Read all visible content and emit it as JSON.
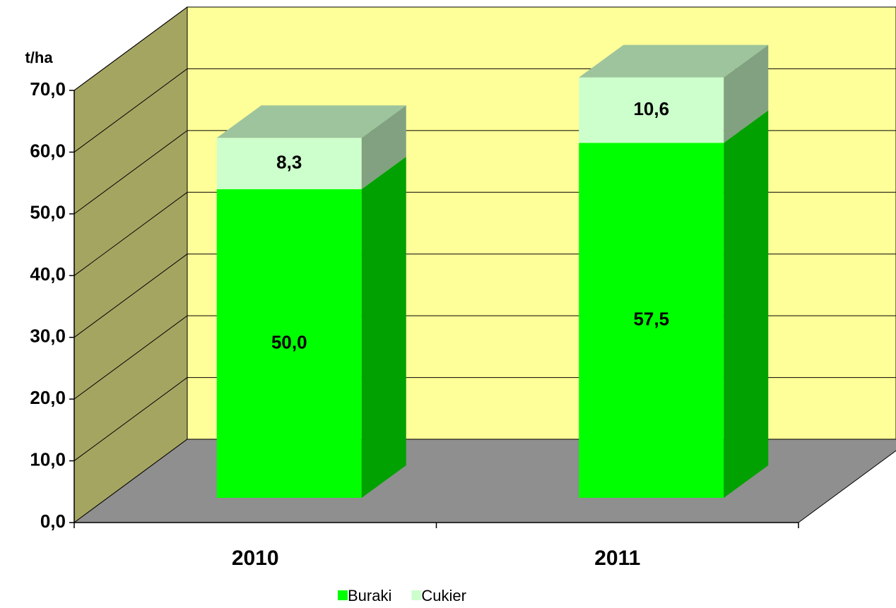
{
  "chart_data": {
    "type": "bar3d_stacked",
    "y_label": "t/ha",
    "categories": [
      "2010",
      "2011"
    ],
    "series": [
      {
        "name": "Buraki",
        "color": "#00ff00",
        "values": [
          50.0,
          57.5
        ],
        "value_labels": [
          "50,0",
          "57,5"
        ]
      },
      {
        "name": "Cukier",
        "color": "#ccffcc",
        "values": [
          8.3,
          10.6
        ],
        "value_labels": [
          "8,3",
          "10,6"
        ]
      }
    ],
    "ylim": [
      0,
      70
    ],
    "yticks": [
      {
        "value": 0,
        "label": "0,0"
      },
      {
        "value": 10,
        "label": "10,0"
      },
      {
        "value": 20,
        "label": "20,0"
      },
      {
        "value": 30,
        "label": "30,0"
      },
      {
        "value": 40,
        "label": "40,0"
      },
      {
        "value": 50,
        "label": "50,0"
      },
      {
        "value": 60,
        "label": "60,0"
      },
      {
        "value": 70,
        "label": "70,0"
      }
    ],
    "grid": true,
    "legend": "bottom"
  }
}
